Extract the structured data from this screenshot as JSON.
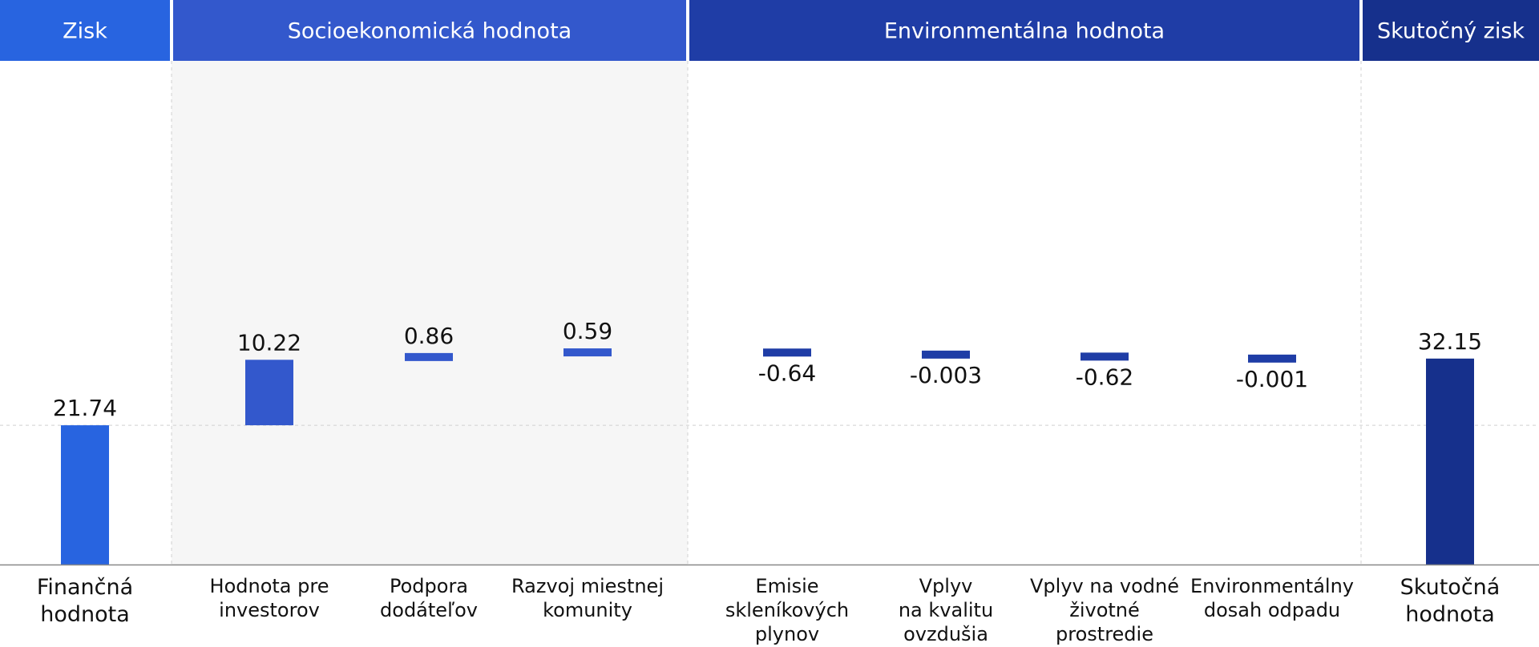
{
  "headers": [
    {
      "label": "Zisk",
      "color": "#2864e0"
    },
    {
      "label": "Socioekonomická hodnota",
      "color": "#3358cc"
    },
    {
      "label": "Environmentálna hodnota",
      "color": "#1f3da6"
    },
    {
      "label": "Skutočný zisk",
      "color": "#16308c"
    }
  ],
  "chart_data": {
    "type": "bar",
    "subtype": "waterfall",
    "categories": [
      "Finančná hodnota",
      "Hodnota pre investorov",
      "Podpora dodáteľov",
      "Razvoj miestnej komunity",
      "Emisie skleníkových plynov",
      "Vplyv na kvalitu ovzdušia",
      "Vplyv na vodné životné prostredie",
      "Environmentálny dosah odpadu",
      "Skutočná hodnota"
    ],
    "category_lines": [
      [
        "Finančná",
        "hodnota"
      ],
      [
        "Hodnota pre",
        "investorov"
      ],
      [
        "Podpora",
        "dodáteľov"
      ],
      [
        "Razvoj miestnej",
        "komunity"
      ],
      [
        "Emisie",
        "skleníkových",
        "plynov"
      ],
      [
        "Vplyv",
        "na kvalitu",
        "ovzdušia"
      ],
      [
        "Vplyv na vodné",
        "životné",
        "prostredie"
      ],
      [
        "Environmentálny",
        "dosah odpadu"
      ],
      [
        "Skutočná",
        "hodnota"
      ]
    ],
    "values": [
      21.74,
      10.22,
      0.86,
      0.59,
      -0.64,
      -0.003,
      -0.62,
      -0.001,
      32.15
    ],
    "value_labels": [
      "21.74",
      "10.22",
      "0.86",
      "0.59",
      "-0.64",
      "-0.003",
      "-0.62",
      "-0.001",
      "32.15"
    ],
    "bar_kind": [
      "total",
      "delta",
      "delta",
      "delta",
      "delta",
      "delta",
      "delta",
      "delta",
      "total"
    ],
    "group_of_bar": [
      0,
      1,
      1,
      1,
      2,
      2,
      2,
      2,
      3
    ],
    "colors": {
      "financial": "#2864e0",
      "socio": "#3358cc",
      "environmental": "#1f3da6",
      "real": "#16308c",
      "socio_band": "#f6f6f6",
      "grid": "#d0d0d0",
      "axis": "#888888"
    },
    "grid": true,
    "xlabel": "",
    "ylabel": ""
  }
}
